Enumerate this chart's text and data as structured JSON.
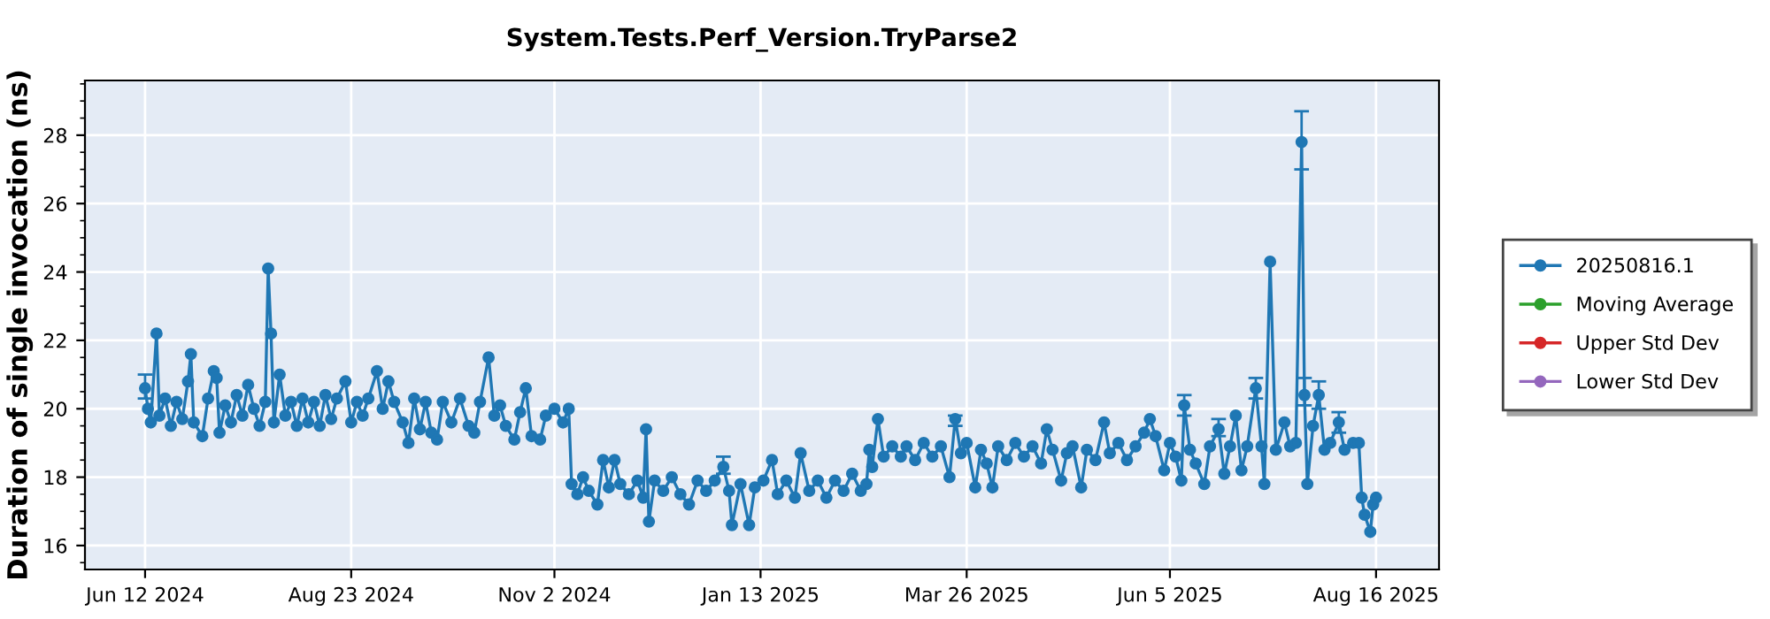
{
  "chart_data": {
    "type": "line",
    "title": "System.Tests.Perf_Version.TryParse2",
    "ylabel": "Duration of single invocation (ns)",
    "xlim": [
      "2024-05-22",
      "2025-09-07"
    ],
    "ylim": [
      15.3,
      29.6
    ],
    "xticks": [
      {
        "value": "2024-06-12",
        "label": "Jun 12 2024"
      },
      {
        "value": "2024-08-23",
        "label": "Aug 23 2024"
      },
      {
        "value": "2024-11-02",
        "label": "Nov 2 2024"
      },
      {
        "value": "2025-01-13",
        "label": "Jan 13 2025"
      },
      {
        "value": "2025-03-26",
        "label": "Mar 26 2025"
      },
      {
        "value": "2025-06-05",
        "label": "Jun 5 2025"
      },
      {
        "value": "2025-08-16",
        "label": "Aug 16 2025"
      }
    ],
    "yticks": [
      16,
      18,
      20,
      22,
      24,
      26,
      28
    ],
    "grid": true,
    "legend": "right",
    "marker": "circle",
    "line_style": "solid",
    "series": [
      {
        "name": "20250816.1",
        "color": "#1f77b4",
        "x": [
          "2024-06-12",
          "2024-06-13",
          "2024-06-14",
          "2024-06-16",
          "2024-06-17",
          "2024-06-19",
          "2024-06-21",
          "2024-06-23",
          "2024-06-25",
          "2024-06-27",
          "2024-06-28",
          "2024-06-29",
          "2024-07-02",
          "2024-07-04",
          "2024-07-06",
          "2024-07-07",
          "2024-07-08",
          "2024-07-10",
          "2024-07-12",
          "2024-07-14",
          "2024-07-16",
          "2024-07-18",
          "2024-07-20",
          "2024-07-22",
          "2024-07-24",
          "2024-07-25",
          "2024-07-26",
          "2024-07-27",
          "2024-07-29",
          "2024-07-31",
          "2024-08-02",
          "2024-08-04",
          "2024-08-06",
          "2024-08-08",
          "2024-08-10",
          "2024-08-12",
          "2024-08-14",
          "2024-08-16",
          "2024-08-18",
          "2024-08-21",
          "2024-08-23",
          "2024-08-25",
          "2024-08-27",
          "2024-08-29",
          "2024-09-01",
          "2024-09-03",
          "2024-09-05",
          "2024-09-07",
          "2024-09-10",
          "2024-09-12",
          "2024-09-14",
          "2024-09-16",
          "2024-09-18",
          "2024-09-20",
          "2024-09-22",
          "2024-09-24",
          "2024-09-27",
          "2024-09-30",
          "2024-10-03",
          "2024-10-05",
          "2024-10-07",
          "2024-10-10",
          "2024-10-12",
          "2024-10-14",
          "2024-10-16",
          "2024-10-19",
          "2024-10-21",
          "2024-10-23",
          "2024-10-25",
          "2024-10-28",
          "2024-10-30",
          "2024-11-02",
          "2024-11-05",
          "2024-11-07",
          "2024-11-08",
          "2024-11-10",
          "2024-11-12",
          "2024-11-14",
          "2024-11-17",
          "2024-11-19",
          "2024-11-21",
          "2024-11-23",
          "2024-11-25",
          "2024-11-28",
          "2024-12-01",
          "2024-12-03",
          "2024-12-04",
          "2024-12-05",
          "2024-12-07",
          "2024-12-10",
          "2024-12-13",
          "2024-12-16",
          "2024-12-19",
          "2024-12-22",
          "2024-12-25",
          "2024-12-28",
          "2024-12-31",
          "2025-01-02",
          "2025-01-03",
          "2025-01-06",
          "2025-01-09",
          "2025-01-11",
          "2025-01-14",
          "2025-01-17",
          "2025-01-19",
          "2025-01-22",
          "2025-01-25",
          "2025-01-27",
          "2025-01-30",
          "2025-02-02",
          "2025-02-05",
          "2025-02-08",
          "2025-02-11",
          "2025-02-14",
          "2025-02-17",
          "2025-02-19",
          "2025-02-20",
          "2025-02-21",
          "2025-02-23",
          "2025-02-25",
          "2025-02-28",
          "2025-03-03",
          "2025-03-05",
          "2025-03-08",
          "2025-03-11",
          "2025-03-14",
          "2025-03-17",
          "2025-03-20",
          "2025-03-22",
          "2025-03-24",
          "2025-03-26",
          "2025-03-29",
          "2025-03-31",
          "2025-04-02",
          "2025-04-04",
          "2025-04-06",
          "2025-04-09",
          "2025-04-12",
          "2025-04-15",
          "2025-04-18",
          "2025-04-21",
          "2025-04-23",
          "2025-04-25",
          "2025-04-28",
          "2025-04-30",
          "2025-05-02",
          "2025-05-05",
          "2025-05-07",
          "2025-05-10",
          "2025-05-13",
          "2025-05-15",
          "2025-05-18",
          "2025-05-21",
          "2025-05-24",
          "2025-05-27",
          "2025-05-29",
          "2025-05-31",
          "2025-06-03",
          "2025-06-05",
          "2025-06-07",
          "2025-06-09",
          "2025-06-10",
          "2025-06-12",
          "2025-06-14",
          "2025-06-17",
          "2025-06-19",
          "2025-06-22",
          "2025-06-24",
          "2025-06-26",
          "2025-06-28",
          "2025-06-30",
          "2025-07-02",
          "2025-07-05",
          "2025-07-07",
          "2025-07-08",
          "2025-07-10",
          "2025-07-12",
          "2025-07-15",
          "2025-07-17",
          "2025-07-19",
          "2025-07-21",
          "2025-07-22",
          "2025-07-23",
          "2025-07-25",
          "2025-07-27",
          "2025-07-29",
          "2025-07-31",
          "2025-08-03",
          "2025-08-05",
          "2025-08-08",
          "2025-08-10",
          "2025-08-11",
          "2025-08-12",
          "2025-08-14",
          "2025-08-15",
          "2025-08-16"
        ],
        "values": [
          20.6,
          20.0,
          19.6,
          22.2,
          19.8,
          20.3,
          19.5,
          20.2,
          19.7,
          20.8,
          21.6,
          19.6,
          19.2,
          20.3,
          21.1,
          20.9,
          19.3,
          20.1,
          19.6,
          20.4,
          19.8,
          20.7,
          20.0,
          19.5,
          20.2,
          24.1,
          22.2,
          19.6,
          21.0,
          19.8,
          20.2,
          19.5,
          20.3,
          19.6,
          20.2,
          19.5,
          20.4,
          19.7,
          20.3,
          20.8,
          19.6,
          20.2,
          19.8,
          20.3,
          21.1,
          20.0,
          20.8,
          20.2,
          19.6,
          19.0,
          20.3,
          19.4,
          20.2,
          19.3,
          19.1,
          20.2,
          19.6,
          20.3,
          19.5,
          19.3,
          20.2,
          21.5,
          19.8,
          20.1,
          19.5,
          19.1,
          19.9,
          20.6,
          19.2,
          19.1,
          19.8,
          20.0,
          19.6,
          20.0,
          17.8,
          17.5,
          18.0,
          17.6,
          17.2,
          18.5,
          17.7,
          18.5,
          17.8,
          17.5,
          17.9,
          17.4,
          19.4,
          16.7,
          17.9,
          17.6,
          18.0,
          17.5,
          17.2,
          17.9,
          17.6,
          17.9,
          18.3,
          17.6,
          16.6,
          17.8,
          16.6,
          17.7,
          17.9,
          18.5,
          17.5,
          17.9,
          17.4,
          18.7,
          17.6,
          17.9,
          17.4,
          17.9,
          17.6,
          18.1,
          17.6,
          17.8,
          18.8,
          18.3,
          19.7,
          18.6,
          18.9,
          18.6,
          18.9,
          18.5,
          19.0,
          18.6,
          18.9,
          18.0,
          19.7,
          18.7,
          19.0,
          17.7,
          18.8,
          18.4,
          17.7,
          18.9,
          18.5,
          19.0,
          18.6,
          18.9,
          18.4,
          19.4,
          18.8,
          17.9,
          18.7,
          18.9,
          17.7,
          18.8,
          18.5,
          19.6,
          18.7,
          19.0,
          18.5,
          18.9,
          19.3,
          19.7,
          19.2,
          18.2,
          19.0,
          18.6,
          17.9,
          20.1,
          18.8,
          18.4,
          17.8,
          18.9,
          19.4,
          18.1,
          18.9,
          19.8,
          18.2,
          18.9,
          20.6,
          18.9,
          17.8,
          24.3,
          18.8,
          19.6,
          18.9,
          19.0,
          27.8,
          20.4,
          17.8,
          19.5,
          20.4,
          18.8,
          19.0,
          19.6,
          18.8,
          19.0,
          19.0,
          17.4,
          16.9,
          16.4,
          17.2,
          17.4
        ],
        "errors": [
          [
            20.3,
            21.0
          ],
          null,
          null,
          null,
          null,
          null,
          null,
          null,
          null,
          null,
          null,
          null,
          null,
          null,
          null,
          null,
          null,
          null,
          null,
          null,
          null,
          null,
          null,
          null,
          null,
          null,
          null,
          null,
          null,
          null,
          null,
          null,
          null,
          null,
          null,
          null,
          null,
          null,
          null,
          null,
          null,
          null,
          null,
          null,
          null,
          null,
          null,
          null,
          null,
          null,
          null,
          null,
          null,
          null,
          null,
          null,
          null,
          null,
          null,
          null,
          null,
          null,
          null,
          null,
          null,
          null,
          null,
          null,
          null,
          null,
          null,
          null,
          null,
          null,
          null,
          null,
          null,
          null,
          null,
          null,
          null,
          null,
          null,
          null,
          null,
          null,
          null,
          null,
          null,
          null,
          null,
          null,
          null,
          null,
          null,
          null,
          [
            18.1,
            18.6
          ],
          null,
          null,
          null,
          null,
          null,
          null,
          null,
          null,
          null,
          null,
          null,
          null,
          null,
          null,
          null,
          null,
          null,
          null,
          null,
          null,
          null,
          null,
          null,
          null,
          null,
          null,
          null,
          null,
          null,
          null,
          null,
          [
            19.5,
            19.8
          ],
          null,
          null,
          null,
          null,
          null,
          null,
          null,
          null,
          null,
          null,
          null,
          null,
          null,
          null,
          null,
          null,
          null,
          null,
          null,
          null,
          null,
          null,
          null,
          null,
          null,
          null,
          null,
          null,
          null,
          null,
          null,
          null,
          [
            19.8,
            20.4
          ],
          null,
          null,
          null,
          null,
          [
            19.2,
            19.7
          ],
          null,
          null,
          null,
          null,
          null,
          [
            20.3,
            20.9
          ],
          null,
          null,
          null,
          null,
          null,
          null,
          null,
          [
            27.0,
            28.7
          ],
          [
            20.1,
            20.9
          ],
          null,
          null,
          [
            20.0,
            20.8
          ],
          null,
          null,
          [
            19.3,
            19.9
          ],
          null,
          null,
          null,
          null,
          null,
          null,
          null,
          null
        ]
      },
      {
        "name": "Moving Average",
        "color": "#2ca02c"
      },
      {
        "name": "Upper Std Dev",
        "color": "#d62728"
      },
      {
        "name": "Lower Std Dev",
        "color": "#9467bd"
      }
    ]
  }
}
